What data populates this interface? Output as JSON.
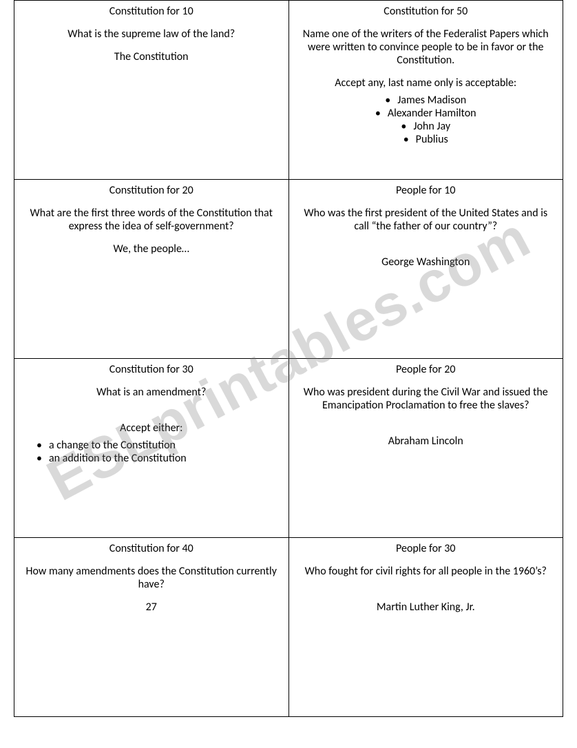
{
  "watermark": "ESLprintables.com",
  "cards": [
    {
      "title": "Constitution for 10",
      "question": "What is the supreme law of the land?",
      "answer": "The Constitution"
    },
    {
      "title": "Constitution for 50",
      "question": "Name one of the writers of the Federalist Papers which were written to convince people to be in favor or the Constitution.",
      "note": "Accept any, last name only is acceptable:",
      "bullets": [
        "James Madison",
        "Alexander Hamilton",
        "John Jay",
        "Publius"
      ],
      "bullets_align": "center"
    },
    {
      "title": "Constitution for 20",
      "question": "What are the first three words of the Constitution that express the idea of self-government?",
      "answer": "We, the people…"
    },
    {
      "title": "People for 10",
      "question": "Who was the first president of the United States and is call “the father of our country”?",
      "answer": "George Washington"
    },
    {
      "title": "Constitution for 30",
      "question": "What is an amendment?",
      "note": "Accept either:",
      "bullets": [
        "a change to the Constitution",
        "an addition to the Constitution"
      ],
      "bullets_align": "left"
    },
    {
      "title": "People for 20",
      "question": "Who was president during the Civil War and issued the Emancipation Proclamation to free the slaves?",
      "answer": "Abraham Lincoln"
    },
    {
      "title": "Constitution for 40",
      "question": "How many amendments does the Constitution currently have?",
      "answer": "27"
    },
    {
      "title": "People for 30",
      "question": "Who fought for civil rights for all people in the 1960’s?",
      "answer": "Martin Luther King, Jr."
    }
  ],
  "layout": {
    "columns": 2,
    "rows": 4,
    "cell_border_color": "#000000",
    "background_color": "#ffffff",
    "font_family": "Calibri",
    "font_size_pt": 12,
    "watermark_color": "rgba(120,120,120,0.28)",
    "watermark_rotation_deg": -28
  }
}
